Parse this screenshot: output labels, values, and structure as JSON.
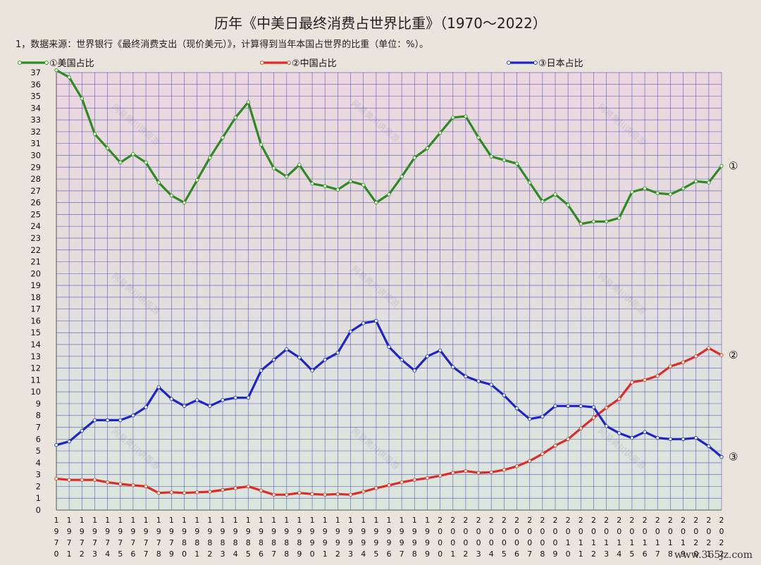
{
  "title": "历年《中美日最终消费占世界比重》（1970～2022）",
  "note": "1，数据来源：世界银行《最终消费支出（现价美元）》，计算得到当年本国占世界的比重（单位：%）。",
  "watermark": "网易黄川讲周游",
  "site": "www.365jz.com",
  "colors": {
    "us": "#2e8a22",
    "china": "#dd2a2a",
    "japan": "#1f24c8",
    "grid": "#4a4ab0",
    "plot_bg_top": "#ecd6df",
    "plot_bg_bottom": "#d9e6dd",
    "marker_fill": "#dff5d2"
  },
  "chart_data": {
    "type": "line",
    "title": "历年《中美日最终消费占世界比重》（1970～2022）",
    "xlabel": "",
    "ylabel": "",
    "ylim": [
      0,
      37
    ],
    "yticks": [
      0,
      1,
      2,
      3,
      4,
      5,
      6,
      7,
      8,
      9,
      10,
      11,
      12,
      13,
      14,
      15,
      16,
      17,
      18,
      19,
      20,
      21,
      22,
      23,
      24,
      25,
      26,
      27,
      28,
      29,
      30,
      31,
      32,
      33,
      34,
      35,
      36,
      37
    ],
    "grid": true,
    "legend": "top",
    "x": [
      1970,
      1971,
      1972,
      1973,
      1974,
      1975,
      1976,
      1977,
      1978,
      1979,
      1980,
      1981,
      1982,
      1983,
      1984,
      1985,
      1986,
      1987,
      1988,
      1989,
      1990,
      1991,
      1992,
      1993,
      1994,
      1995,
      1996,
      1997,
      1998,
      1999,
      2000,
      2001,
      2002,
      2003,
      2004,
      2005,
      2006,
      2007,
      2008,
      2009,
      2010,
      2011,
      2012,
      2013,
      2014,
      2015,
      2016,
      2017,
      2018,
      2019,
      2020,
      2021,
      2022
    ],
    "series": [
      {
        "name": "①美国占比",
        "end_label": "①",
        "values": [
          37.2,
          36.6,
          34.8,
          31.8,
          30.6,
          29.4,
          30.1,
          29.4,
          27.7,
          26.6,
          26.0,
          27.9,
          29.8,
          31.5,
          33.2,
          34.5,
          30.9,
          28.9,
          28.2,
          29.2,
          27.6,
          27.4,
          27.1,
          27.8,
          27.5,
          26.0,
          26.7,
          28.2,
          29.8,
          30.6,
          31.9,
          33.2,
          33.3,
          31.5,
          29.9,
          29.6,
          29.3,
          27.7,
          26.1,
          26.7,
          25.8,
          24.2,
          24.4,
          24.4,
          24.7,
          26.9,
          27.2,
          26.8,
          26.7,
          27.2,
          27.8,
          27.7,
          29.1
        ]
      },
      {
        "name": "②中国占比",
        "end_label": "②",
        "values": [
          2.65,
          2.55,
          2.55,
          2.55,
          2.35,
          2.2,
          2.1,
          2.0,
          1.45,
          1.5,
          1.45,
          1.5,
          1.55,
          1.7,
          1.85,
          2.0,
          1.65,
          1.3,
          1.3,
          1.45,
          1.35,
          1.3,
          1.35,
          1.3,
          1.55,
          1.85,
          2.1,
          2.35,
          2.55,
          2.7,
          2.9,
          3.15,
          3.3,
          3.15,
          3.2,
          3.4,
          3.7,
          4.15,
          4.75,
          5.45,
          6.0,
          6.9,
          7.8,
          8.65,
          9.4,
          10.8,
          11.0,
          11.35,
          12.15,
          12.5,
          13.0,
          13.7,
          13.1
        ]
      },
      {
        "name": "③日本占比",
        "end_label": "③",
        "values": [
          5.5,
          5.8,
          6.7,
          7.6,
          7.6,
          7.6,
          8.0,
          8.7,
          10.4,
          9.4,
          8.8,
          9.3,
          8.8,
          9.3,
          9.5,
          9.5,
          11.8,
          12.7,
          13.6,
          12.9,
          11.8,
          12.7,
          13.3,
          15.1,
          15.8,
          16.0,
          13.8,
          12.7,
          11.8,
          13.0,
          13.5,
          12.1,
          11.3,
          10.9,
          10.6,
          9.7,
          8.6,
          7.7,
          7.9,
          8.8,
          8.8,
          8.8,
          8.7,
          7.1,
          6.5,
          6.1,
          6.6,
          6.1,
          6.0,
          6.0,
          6.1,
          5.4,
          4.5
        ]
      }
    ]
  }
}
